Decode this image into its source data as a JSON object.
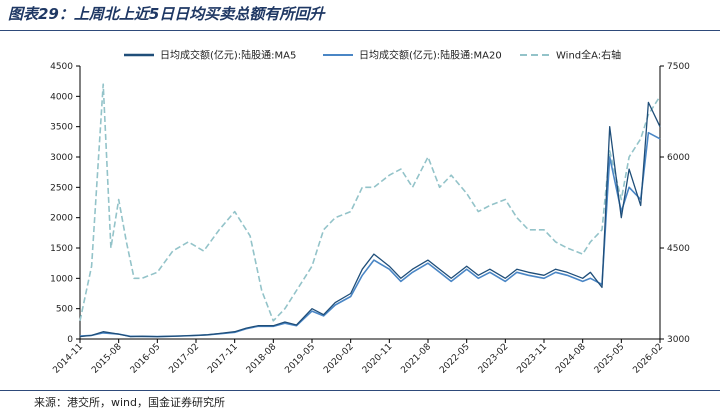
{
  "header": {
    "title": "图表29：上周北上近5日日均买卖总额有所回升"
  },
  "footer": {
    "source": "来源：港交所，wind，国金证券研究所"
  },
  "colors": {
    "ma5": "#1f4e79",
    "ma20": "#4a86c5",
    "wind": "#93c3c9",
    "axis": "#000000",
    "title": "#1f3864"
  },
  "chart_data": {
    "type": "line",
    "title": "上周北上近5日日均买卖总额有所回升",
    "x_ticks": [
      "2014-11",
      "2015-08",
      "2016-05",
      "2017-02",
      "2017-11",
      "2018-08",
      "2019-05",
      "2020-02",
      "2020-11",
      "2021-08",
      "2022-05",
      "2023-02",
      "2023-11",
      "2024-08",
      "2025-05",
      "2026-02"
    ],
    "y_left": {
      "range": [
        0,
        4500
      ],
      "ticks": [
        "0",
        "500",
        "1000",
        "1500",
        "2000",
        "2500",
        "3000",
        "3500",
        "4000",
        "4500"
      ]
    },
    "y_right": {
      "range": [
        3000,
        7500
      ],
      "ticks": [
        "3000",
        "4500",
        "6000",
        "7500"
      ]
    },
    "legend": [
      {
        "key": "ma5",
        "label": "日均成交额(亿元):陆股通:MA5"
      },
      {
        "key": "ma20",
        "label": "日均成交额(亿元):陆股通:MA20"
      },
      {
        "key": "wind",
        "label": "Wind全A:右轴"
      }
    ],
    "series": [
      {
        "name": "日均成交额(亿元):陆股通:MA5",
        "axis": "left",
        "x": [
          0,
          0.3,
          0.6,
          1,
          1.3,
          1.6,
          2,
          2.3,
          2.6,
          3,
          3.3,
          3.6,
          4,
          4.3,
          4.6,
          5,
          5.3,
          5.6,
          6,
          6.3,
          6.6,
          7,
          7.3,
          7.6,
          8,
          8.3,
          8.6,
          9,
          9.3,
          9.6,
          10,
          10.3,
          10.6,
          11,
          11.3,
          11.6,
          12,
          12.3,
          12.6,
          13,
          13.2,
          13.5,
          13.7,
          14,
          14.2,
          14.5,
          14.7,
          15
        ],
        "values": [
          40,
          60,
          120,
          80,
          40,
          45,
          40,
          45,
          50,
          60,
          70,
          90,
          120,
          180,
          220,
          220,
          280,
          230,
          500,
          400,
          600,
          750,
          1150,
          1400,
          1200,
          1000,
          1150,
          1300,
          1150,
          1000,
          1200,
          1050,
          1150,
          1000,
          1150,
          1100,
          1050,
          1150,
          1100,
          1000,
          1100,
          850,
          3500,
          2000,
          2800,
          2200,
          3900,
          3500
        ]
      },
      {
        "name": "日均成交额(亿元):陆股通:MA20",
        "axis": "left",
        "x": [
          0,
          0.3,
          0.6,
          1,
          1.3,
          1.6,
          2,
          2.3,
          2.6,
          3,
          3.3,
          3.6,
          4,
          4.3,
          4.6,
          5,
          5.3,
          5.6,
          6,
          6.3,
          6.6,
          7,
          7.3,
          7.6,
          8,
          8.3,
          8.6,
          9,
          9.3,
          9.6,
          10,
          10.3,
          10.6,
          11,
          11.3,
          11.6,
          12,
          12.3,
          12.6,
          13,
          13.2,
          13.5,
          13.7,
          14,
          14.2,
          14.5,
          14.7,
          15
        ],
        "values": [
          50,
          60,
          100,
          80,
          45,
          45,
          40,
          45,
          50,
          60,
          70,
          85,
          110,
          170,
          210,
          210,
          260,
          220,
          460,
          380,
          560,
          700,
          1050,
          1300,
          1150,
          950,
          1100,
          1250,
          1100,
          950,
          1150,
          1000,
          1100,
          950,
          1100,
          1050,
          1000,
          1100,
          1050,
          950,
          1000,
          900,
          3000,
          2100,
          2500,
          2300,
          3400,
          3300
        ]
      },
      {
        "name": "Wind全A:右轴",
        "axis": "right",
        "x": [
          0,
          0.3,
          0.6,
          0.8,
          1,
          1.2,
          1.4,
          1.6,
          2,
          2.4,
          2.8,
          3.2,
          3.6,
          4,
          4.4,
          4.7,
          5,
          5.3,
          5.6,
          6,
          6.3,
          6.6,
          7,
          7.3,
          7.6,
          8,
          8.3,
          8.6,
          9,
          9.3,
          9.6,
          10,
          10.3,
          10.6,
          11,
          11.3,
          11.6,
          12,
          12.3,
          12.6,
          13,
          13.2,
          13.5,
          13.7,
          14,
          14.2,
          14.5,
          14.7,
          15
        ],
        "values": [
          3300,
          4200,
          7200,
          4500,
          5300,
          4600,
          4000,
          4000,
          4100,
          4450,
          4600,
          4450,
          4800,
          5100,
          4700,
          3800,
          3300,
          3500,
          3800,
          4200,
          4800,
          5000,
          5100,
          5500,
          5500,
          5700,
          5800,
          5500,
          6000,
          5500,
          5700,
          5400,
          5100,
          5200,
          5300,
          5000,
          4800,
          4800,
          4600,
          4500,
          4400,
          4600,
          4800,
          6100,
          5300,
          6000,
          6300,
          6700,
          7000
        ]
      }
    ]
  }
}
